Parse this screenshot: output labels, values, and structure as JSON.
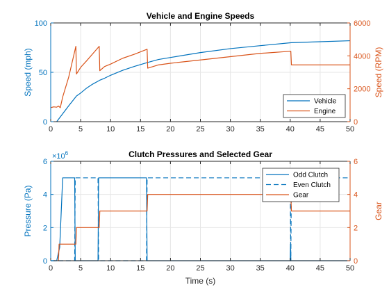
{
  "colors": {
    "left_axis": "#0072BD",
    "right_axis": "#D95319",
    "grid": "#e6e6e6",
    "axis": "#262626"
  },
  "chart_data": [
    {
      "type": "line",
      "title": "Vehicle and Engine Speeds",
      "xlabel": "",
      "xlim": [
        0,
        50
      ],
      "xticks": [
        0,
        5,
        10,
        15,
        20,
        25,
        30,
        35,
        40,
        45,
        50
      ],
      "ylabel_left": "Speed (mph)",
      "ylim_left": [
        0,
        100
      ],
      "yticks_left": [
        0,
        50,
        100
      ],
      "ylabel_right": "Speed (RPM)",
      "ylim_right": [
        0,
        6000
      ],
      "yticks_right": [
        0,
        2000,
        4000,
        6000
      ],
      "grid": true,
      "legend_position": "bottom-right",
      "series": [
        {
          "name": "Vehicle",
          "axis": "left",
          "color": "#0072BD",
          "style": "solid",
          "x": [
            1,
            2,
            3,
            4.3,
            5,
            6,
            7,
            8.2,
            9,
            10,
            12,
            14,
            16.2,
            18,
            20,
            25,
            30,
            35,
            40.2,
            45,
            50
          ],
          "y": [
            0,
            8,
            16,
            26,
            29,
            34,
            38,
            42,
            44,
            47,
            52,
            56,
            60,
            63,
            65,
            70,
            74,
            77,
            80,
            81,
            82
          ]
        },
        {
          "name": "Engine",
          "axis": "right",
          "color": "#D95319",
          "style": "solid",
          "x": [
            0,
            0.5,
            1,
            1.3,
            1.6,
            2,
            3,
            4.2,
            4.3,
            5,
            6,
            8.1,
            8.2,
            9,
            10,
            12,
            14,
            16.1,
            16.2,
            18,
            20,
            25,
            30,
            35,
            40.1,
            40.2,
            45,
            50
          ],
          "y": [
            850,
            900,
            880,
            950,
            850,
            1500,
            2700,
            4580,
            2900,
            3300,
            3700,
            4580,
            3100,
            3350,
            3500,
            3850,
            4100,
            4400,
            3250,
            3450,
            3550,
            3750,
            3950,
            4150,
            4280,
            3450,
            3450,
            3450
          ]
        }
      ]
    },
    {
      "type": "line",
      "title": "Clutch Pressures and Selected Gear",
      "xlabel": "Time (s)",
      "xlim": [
        0,
        50
      ],
      "xticks": [
        0,
        5,
        10,
        15,
        20,
        25,
        30,
        35,
        40,
        45,
        50
      ],
      "ylabel_left": "Pressure (Pa)",
      "ylim_left": [
        0,
        6000000
      ],
      "yticks_left": [
        0,
        2000000,
        4000000,
        6000000
      ],
      "ytick_labels_left": [
        "0",
        "2",
        "4",
        "6"
      ],
      "exponent_label": "×10",
      "exponent_power": "6",
      "ylabel_right": "Gear",
      "ylim_right": [
        0,
        6
      ],
      "yticks_right": [
        0,
        2,
        4,
        6
      ],
      "grid": true,
      "legend_position": "top-right",
      "series": [
        {
          "name": "Odd Clutch",
          "axis": "left",
          "color": "#0072BD",
          "style": "solid",
          "x": [
            0,
            1,
            1.5,
            2,
            4,
            4.1,
            4.2,
            7.9,
            8,
            8.1,
            16,
            16.1,
            16.2,
            40,
            40.05,
            40.1,
            50
          ],
          "y": [
            0,
            0,
            800000,
            5000000,
            5000000,
            0,
            0,
            0,
            5000000,
            5000000,
            5000000,
            0,
            0,
            0,
            1000000,
            0,
            0
          ]
        },
        {
          "name": "Even Clutch",
          "axis": "left",
          "color": "#0072BD",
          "style": "dashed",
          "x": [
            0,
            4,
            4.1,
            4.2,
            7.9,
            8,
            8.1,
            16,
            16.1,
            16.2,
            40,
            40.1,
            40.2,
            50
          ],
          "y": [
            0,
            0,
            5000000,
            5000000,
            5000000,
            0,
            0,
            0,
            5000000,
            5000000,
            5000000,
            0,
            5000000,
            5000000
          ]
        },
        {
          "name": "Gear",
          "axis": "right",
          "color": "#D95319",
          "style": "solid",
          "x": [
            1.3,
            1.4,
            4.2,
            4.3,
            8.1,
            8.2,
            16.1,
            16.2,
            40.1,
            40.2,
            50
          ],
          "y": [
            0,
            1,
            1,
            2,
            2,
            3,
            3,
            4,
            4,
            3,
            3
          ]
        }
      ]
    }
  ]
}
